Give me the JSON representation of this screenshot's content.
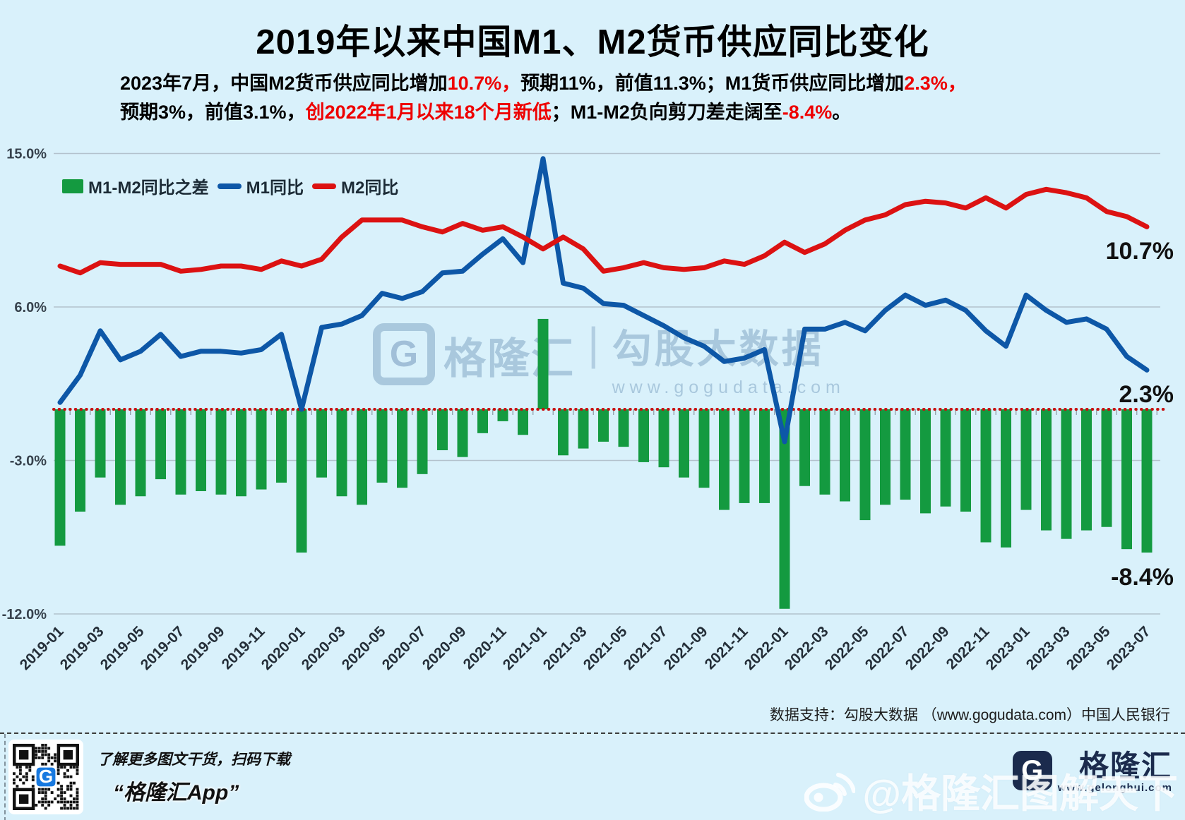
{
  "title": "2019年以来中国M1、M2货币供应同比变化",
  "subtitle": {
    "line1": [
      {
        "t": "2023年7月，中国M2货币供应同比增加"
      },
      {
        "t": "10.7%，",
        "red": true
      },
      {
        "t": "预期11%，前值11.3%；M1货币供应同比增加"
      },
      {
        "t": "2.3%，",
        "red": true
      }
    ],
    "line2": [
      {
        "t": "预期3%，前值3.1%，"
      },
      {
        "t": "创2022年1月以来18个月新低",
        "red": true
      },
      {
        "t": "；M1-M2负向剪刀差走阔至"
      },
      {
        "t": "-8.4%",
        "red": true
      },
      {
        "t": "。"
      }
    ]
  },
  "legend": {
    "items": [
      {
        "label": "M1-M2同比之差",
        "type": "bar",
        "color": "#149a40"
      },
      {
        "label": "M1同比",
        "type": "line",
        "color": "#0d57a7"
      },
      {
        "label": "M2同比",
        "type": "line",
        "color": "#dc1212"
      }
    ]
  },
  "chart_data": {
    "type": "combo-bar-line",
    "categories": [
      "2019-01",
      "2019-02",
      "2019-03",
      "2019-04",
      "2019-05",
      "2019-06",
      "2019-07",
      "2019-08",
      "2019-09",
      "2019-10",
      "2019-11",
      "2019-12",
      "2020-01",
      "2020-02",
      "2020-03",
      "2020-04",
      "2020-05",
      "2020-06",
      "2020-07",
      "2020-08",
      "2020-09",
      "2020-10",
      "2020-11",
      "2020-12",
      "2021-01",
      "2021-02",
      "2021-03",
      "2021-04",
      "2021-05",
      "2021-06",
      "2021-07",
      "2021-08",
      "2021-09",
      "2021-10",
      "2021-11",
      "2021-12",
      "2022-01",
      "2022-02",
      "2022-03",
      "2022-04",
      "2022-05",
      "2022-06",
      "2022-07",
      "2022-08",
      "2022-09",
      "2022-10",
      "2022-11",
      "2022-12",
      "2023-01",
      "2023-02",
      "2023-03",
      "2023-04",
      "2023-05",
      "2023-06",
      "2023-07"
    ],
    "series": [
      {
        "name": "M1-M2同比之差",
        "type": "bar",
        "color": "#149a40",
        "values": [
          -8.0,
          -6.0,
          -4.0,
          -5.6,
          -5.1,
          -4.1,
          -5.0,
          -4.8,
          -5.0,
          -5.1,
          -4.7,
          -4.3,
          -8.4,
          -4.0,
          -5.1,
          -5.6,
          -4.3,
          -4.6,
          -3.8,
          -2.4,
          -2.8,
          -1.4,
          -0.7,
          -1.5,
          5.3,
          -2.7,
          -2.3,
          -1.9,
          -2.2,
          -3.1,
          -3.4,
          -4.0,
          -4.6,
          -5.9,
          -5.5,
          -5.5,
          -11.7,
          -4.5,
          -5.0,
          -5.4,
          -6.5,
          -5.6,
          -5.3,
          -6.1,
          -5.7,
          -6.0,
          -7.8,
          -8.1,
          -5.9,
          -7.1,
          -7.6,
          -7.1,
          -6.9,
          -8.2,
          -8.4
        ]
      },
      {
        "name": "M1同比",
        "type": "line",
        "color": "#0d57a7",
        "values": [
          0.4,
          2.0,
          4.6,
          2.9,
          3.4,
          4.4,
          3.1,
          3.4,
          3.4,
          3.3,
          3.5,
          4.4,
          0.0,
          4.8,
          5.0,
          5.5,
          6.8,
          6.5,
          6.9,
          8.0,
          8.1,
          9.1,
          10.0,
          8.6,
          14.7,
          7.4,
          7.1,
          6.2,
          6.1,
          5.5,
          4.9,
          4.2,
          3.7,
          2.8,
          3.0,
          3.5,
          -1.9,
          4.7,
          4.7,
          5.1,
          4.6,
          5.8,
          6.7,
          6.1,
          6.4,
          5.8,
          4.6,
          3.7,
          6.7,
          5.8,
          5.1,
          5.3,
          4.7,
          3.1,
          2.3
        ]
      },
      {
        "name": "M2同比",
        "type": "line",
        "color": "#dc1212",
        "values": [
          8.4,
          8.0,
          8.6,
          8.5,
          8.5,
          8.5,
          8.1,
          8.2,
          8.4,
          8.4,
          8.2,
          8.7,
          8.4,
          8.8,
          10.1,
          11.1,
          11.1,
          11.1,
          10.7,
          10.4,
          10.9,
          10.5,
          10.7,
          10.1,
          9.4,
          10.1,
          9.4,
          8.1,
          8.3,
          8.6,
          8.3,
          8.2,
          8.3,
          8.7,
          8.5,
          9.0,
          9.8,
          9.2,
          9.7,
          10.5,
          11.1,
          11.4,
          12.0,
          12.2,
          12.1,
          11.8,
          12.4,
          11.8,
          12.6,
          12.9,
          12.7,
          12.4,
          11.6,
          11.3,
          10.7
        ]
      }
    ],
    "yticks": [
      {
        "label": "15.0%",
        "value": 15
      },
      {
        "label": "6.0%",
        "value": 6
      },
      {
        "label": "-3.0%",
        "value": -3
      },
      {
        "label": "-12.0%",
        "value": -12
      }
    ],
    "ylim": [
      -12,
      15
    ],
    "grid": true,
    "zero_line": {
      "value": 0,
      "style": "dotted",
      "color": "#c81010"
    },
    "xtick_label_every": 2,
    "legend_position": "top-left",
    "annotations": [
      {
        "text": "10.7%",
        "value": 10.7,
        "series": "M2同比"
      },
      {
        "text": "2.3%",
        "value": 2.3,
        "series": "M1同比"
      },
      {
        "text": "-8.4%",
        "value": -8.4,
        "series": "M1-M2同比之差"
      }
    ]
  },
  "watermark": {
    "g": "G",
    "brand": "格隆汇",
    "divider": "|",
    "brand2": "勾股大数据",
    "url": "www.gogudata.com"
  },
  "source_line": "数据支持：勾股大数据 （www.gogudata.com）中国人民银行",
  "footer": {
    "qr_caption_line1": "了解更多图文干货，扫码下载",
    "qr_caption_line2": "“格隆汇App”",
    "logo_g": "G",
    "logo_text": "格隆汇",
    "logo_url": "www.gelonghui.com",
    "weibo_handle": "@格隆汇图解天下"
  },
  "colors": {
    "background": "#d9f1fb",
    "grid": "#b3c2cd",
    "axis_label": "#37424d",
    "bar_green": "#149a40",
    "line_blue": "#0d57a7",
    "line_red": "#dc1212",
    "zero_dotted": "#c81010",
    "highlight_red": "#ee0000",
    "navy": "#1b2b4d"
  }
}
